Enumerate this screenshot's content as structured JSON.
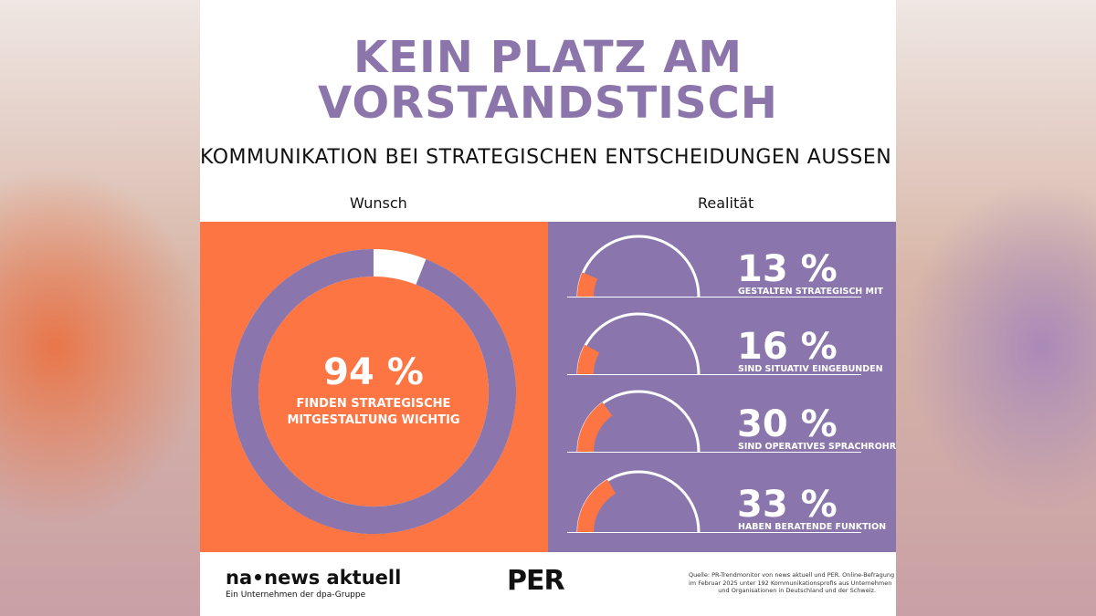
{
  "title_lines": [
    "KEIN PLATZ AM",
    "VORSTANDSTISCH"
  ],
  "subtitle": "KOMMUNIKATION BEI STRATEGISCHEN ENTSCHEIDUNGEN AUSSEN VOR",
  "colors": {
    "purple": "#8a76ac",
    "title_purple": "#8c75ab",
    "orange": "#fd7542",
    "white": "#ffffff",
    "text": "#111111"
  },
  "chart_data": [
    {
      "type": "pie",
      "group_label": "Wunsch",
      "value": 94,
      "value_label": "94 %",
      "description_lines": [
        "FINDEN STRATEGISCHE",
        "MITGESTALTUNG WICHTIG"
      ]
    },
    {
      "type": "pie",
      "group_label": "Realität",
      "items": [
        {
          "value": 13,
          "value_label": "13 %",
          "description": "GESTALTEN STRATEGISCH MIT"
        },
        {
          "value": 16,
          "value_label": "16 %",
          "description": "SIND SITUATIV EINGEBUNDEN"
        },
        {
          "value": 30,
          "value_label": "30 %",
          "description": "SIND OPERATIVES SPRACHROHR"
        },
        {
          "value": 33,
          "value_label": "33 %",
          "description": "HABEN BERATENDE FUNKTION"
        }
      ]
    }
  ],
  "footer": {
    "na_logo_left": "na",
    "na_logo_right": "news aktuell",
    "na_tagline": "Ein Unternehmen der dpa-Gruppe",
    "per_logo": "PER",
    "source_lines": [
      "Quelle: PR-Trendmonitor von news aktuell und PER. Online-Befragung",
      "im Februar 2025 unter 192 Kommunikationsprofis aus Unternehmen",
      "und Organisationen in Deutschland und der Schweiz."
    ]
  }
}
